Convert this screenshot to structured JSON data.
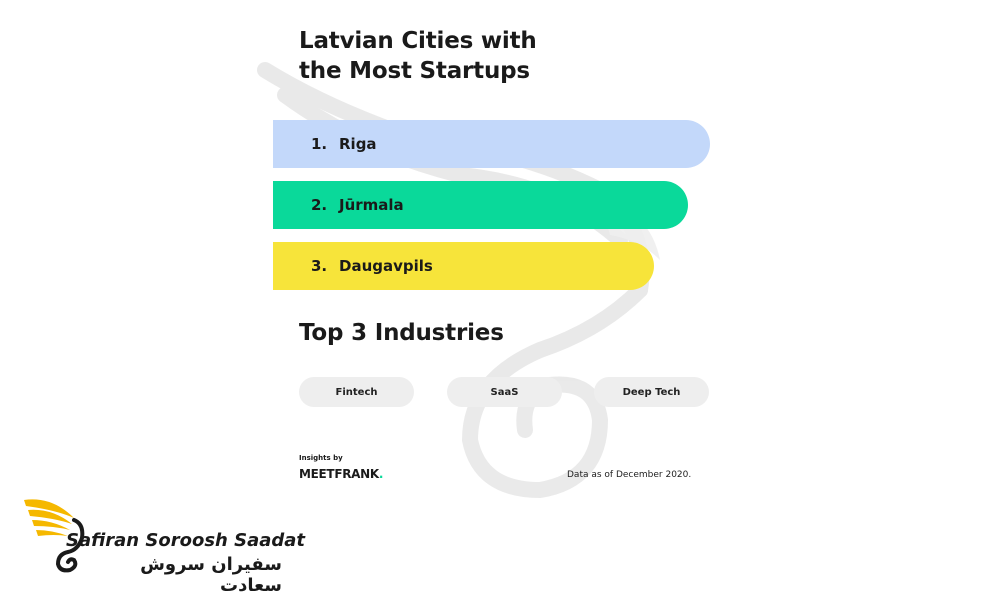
{
  "infographic": {
    "title_line1": "Latvian Cities with",
    "title_line2": "the Most Startups",
    "cities": [
      {
        "rank": "1.",
        "name": "Riga",
        "color": "#c3d8fa"
      },
      {
        "rank": "2.",
        "name": "Jūrmala",
        "color": "#0ad99a"
      },
      {
        "rank": "3.",
        "name": "Daugavpils",
        "color": "#f7e43a"
      }
    ],
    "industries_heading": "Top 3 Industries",
    "industries": [
      "Fintech",
      "SaaS",
      "Deep Tech"
    ],
    "insights_by": "Insights by",
    "source_brand": "MEETFRANK",
    "source_brand_dot": ".",
    "data_note": "Data as of December 2020."
  },
  "brand": {
    "name_en": "Safiran Soroosh Saadat",
    "name_fa": "سفیران سروش سعادت",
    "accent": "#f5b800"
  }
}
